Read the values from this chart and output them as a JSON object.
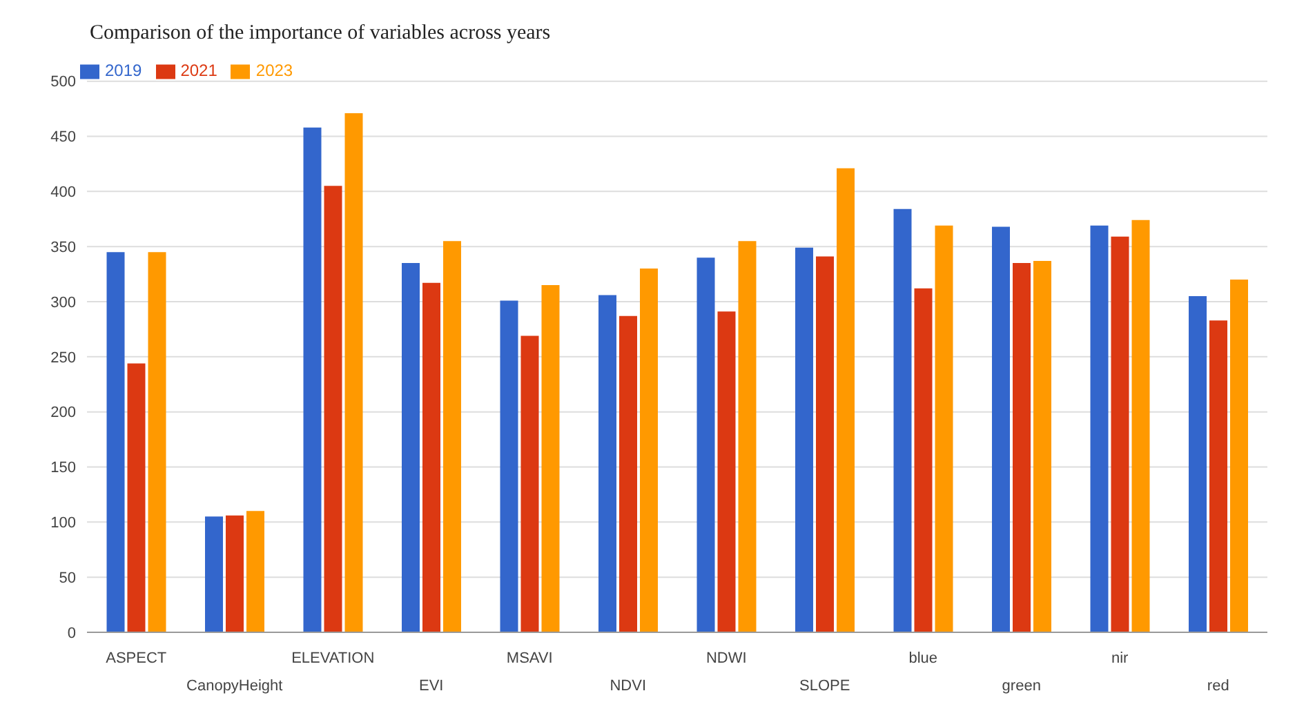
{
  "chart_data": {
    "type": "bar",
    "title": "Comparison of the importance of variables across years",
    "categories": [
      "ASPECT",
      "CanopyHeight",
      "ELEVATION",
      "EVI",
      "MSAVI",
      "NDVI",
      "NDWI",
      "SLOPE",
      "blue",
      "green",
      "nir",
      "red"
    ],
    "series": [
      {
        "name": "2019",
        "color": "#3366cc",
        "values": [
          345,
          105,
          458,
          335,
          301,
          306,
          340,
          349,
          384,
          368,
          369,
          305
        ]
      },
      {
        "name": "2021",
        "color": "#dc3912",
        "values": [
          244,
          106,
          405,
          317,
          269,
          287,
          291,
          341,
          312,
          335,
          359,
          283
        ]
      },
      {
        "name": "2023",
        "color": "#ff9900",
        "values": [
          345,
          110,
          471,
          355,
          315,
          330,
          355,
          421,
          369,
          337,
          374,
          320
        ]
      }
    ],
    "ylim": [
      0,
      500
    ],
    "yticks": [
      0,
      50,
      100,
      150,
      200,
      250,
      300,
      350,
      400,
      450,
      500
    ],
    "grid": "y",
    "legend": "top left"
  }
}
